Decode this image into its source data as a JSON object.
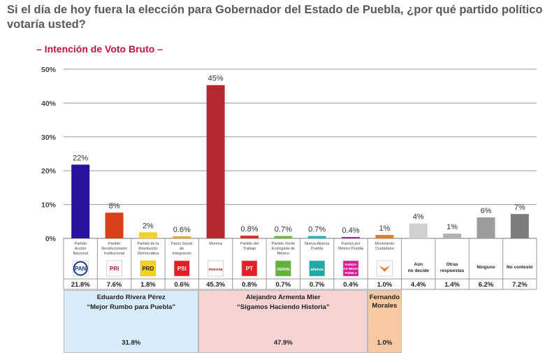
{
  "title": "Si el día de hoy fuera la elección para Gobernador del Estado de Puebla, ¿por qué partido político votaría usted?",
  "subtitle": "– Intención de Voto Bruto –",
  "colors": {
    "pan": "#2a1199",
    "pri": "#d6411a",
    "prd": "#f3d12b",
    "psi": "#f2a324",
    "morena": "#b5282e",
    "pt": "#d92a2a",
    "pvem": "#72b844",
    "nueva": "#2bb1b1",
    "fxm": "#c0169b",
    "mc": "#e8762b",
    "undecided": "#d0d0d0",
    "other": "#b0b0b0",
    "ninguno": "#9c9c9c",
    "nocontesto": "#7c7c7c"
  },
  "chart_data": {
    "type": "bar",
    "ylim": [
      0,
      50
    ],
    "yticks": [
      "0%",
      "10%",
      "20%",
      "30%",
      "40%",
      "50%"
    ],
    "grid": true,
    "categories": [
      {
        "label": "Partido Acción Nacional",
        "value": 21.8,
        "bar_label": "22%",
        "table_value": "21.8%",
        "logo": "PAN",
        "icon": "pan-logo-icon",
        "color_key": "pan"
      },
      {
        "label": "Partido Revolucionario Institucional",
        "value": 7.6,
        "bar_label": "8%",
        "table_value": "7.6%",
        "logo": "PRI",
        "icon": "pri-logo-icon",
        "color_key": "pri"
      },
      {
        "label": "Partido de la Revolución Democrática",
        "value": 1.8,
        "bar_label": "2%",
        "table_value": "1.8%",
        "logo": "PRD",
        "icon": "prd-logo-icon",
        "color_key": "prd"
      },
      {
        "label": "Pacto Social de Integración",
        "value": 0.6,
        "bar_label": "0.6%",
        "table_value": "0.6%",
        "logo": "PSI",
        "icon": "psi-logo-icon",
        "color_key": "psi"
      },
      {
        "label": "Morena",
        "value": 45.3,
        "bar_label": "45%",
        "table_value": "45.3%",
        "logo": "morena",
        "icon": "morena-logo-icon",
        "color_key": "morena"
      },
      {
        "label": "Partido del Trabajo",
        "value": 0.8,
        "bar_label": "0.8%",
        "table_value": "0.8%",
        "logo": "PT",
        "icon": "pt-logo-icon",
        "color_key": "pt"
      },
      {
        "label": "Partido Verde Ecologista de México",
        "value": 0.7,
        "bar_label": "0.7%",
        "table_value": "0.7%",
        "logo": "VERDE",
        "icon": "pvem-logo-icon",
        "color_key": "pvem"
      },
      {
        "label": "Nueva Alianza Puebla",
        "value": 0.7,
        "bar_label": "0.7%",
        "table_value": "0.7%",
        "logo": "alianza",
        "icon": "nueva-alianza-logo-icon",
        "color_key": "nueva"
      },
      {
        "label": "Fuerza por México Puebla",
        "value": 0.4,
        "bar_label": "0.4%",
        "table_value": "0.4%",
        "logo": "FUERZA POR MÉXICO PUEBLA",
        "icon": "fxm-logo-icon",
        "color_key": "fxm"
      },
      {
        "label": "Movimiento Ciudadano",
        "value": 1.0,
        "bar_label": "1%",
        "table_value": "1.0%",
        "logo": "",
        "icon": "mc-logo-icon",
        "color_key": "mc"
      },
      {
        "label": "Aún no decide",
        "value": 4.4,
        "bar_label": "4%",
        "table_value": "4.4%",
        "text_cell": "Aún no decide",
        "color_key": "undecided"
      },
      {
        "label": "Otras respuestas",
        "value": 1.4,
        "bar_label": "1%",
        "table_value": "1.4%",
        "text_cell": "Otras respuestas",
        "color_key": "other"
      },
      {
        "label": "Ninguno",
        "value": 6.2,
        "bar_label": "6%",
        "table_value": "6.2%",
        "text_cell": "Ninguno",
        "color_key": "ninguno"
      },
      {
        "label": "No contestó",
        "value": 7.2,
        "bar_label": "7%",
        "table_value": "7.2%",
        "text_cell": "No contestó",
        "color_key": "nocontesto"
      }
    ],
    "candidates": [
      {
        "name": "Eduardo Rivera Pérez",
        "slogan": "“Mejor Rumbo para Puebla”",
        "total": "31.8%",
        "span": [
          0,
          4
        ],
        "bg": "#d8ecfb"
      },
      {
        "name": "Alejandro Armenta Mier",
        "slogan": "“Sigamos Haciendo Historia”",
        "total": "47.9%",
        "span": [
          4,
          9
        ],
        "bg": "#f8d3d3"
      },
      {
        "name": "Fernando Morales",
        "slogan": "",
        "total": "1.0%",
        "span": [
          9,
          10
        ],
        "bg": "#f7c9a3"
      }
    ]
  }
}
